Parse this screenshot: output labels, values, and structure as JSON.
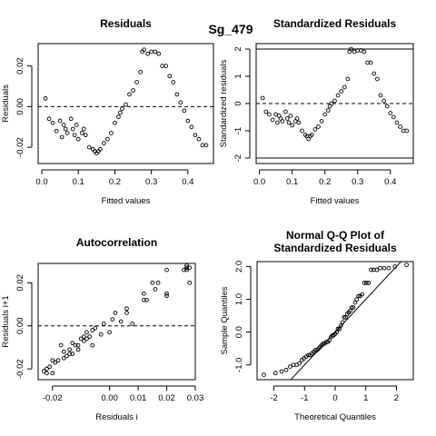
{
  "suptitle": "Sg_479",
  "chart_data": [
    {
      "id": "residuals",
      "type": "scatter",
      "title": "Residuals",
      "xlabel": "Fitted values",
      "ylabel": "Residuals",
      "xlim": [
        -0.01,
        0.47
      ],
      "ylim": [
        -0.028,
        0.031
      ],
      "xticks": [
        0.0,
        0.1,
        0.2,
        0.3,
        0.4
      ],
      "xtick_labels": [
        "0.0",
        "0.1",
        "0.2",
        "0.3",
        "0.4"
      ],
      "yticks": [
        -0.02,
        0.0,
        0.02
      ],
      "ytick_labels": [
        "-0.02",
        "0.00",
        "0.02"
      ],
      "hline": 0,
      "x": [
        0.01,
        0.02,
        0.03,
        0.04,
        0.05,
        0.055,
        0.06,
        0.065,
        0.07,
        0.08,
        0.085,
        0.09,
        0.095,
        0.1,
        0.11,
        0.115,
        0.12,
        0.13,
        0.14,
        0.145,
        0.15,
        0.155,
        0.16,
        0.17,
        0.18,
        0.19,
        0.2,
        0.21,
        0.215,
        0.22,
        0.23,
        0.24,
        0.25,
        0.26,
        0.27,
        0.275,
        0.28,
        0.29,
        0.3,
        0.31,
        0.32,
        0.33,
        0.34,
        0.35,
        0.36,
        0.37,
        0.38,
        0.39,
        0.4,
        0.41,
        0.42,
        0.43,
        0.44,
        0.45
      ],
      "y": [
        0.004,
        -0.006,
        -0.008,
        -0.012,
        -0.007,
        -0.015,
        -0.009,
        -0.011,
        -0.013,
        -0.006,
        -0.011,
        -0.014,
        -0.009,
        -0.016,
        -0.013,
        -0.011,
        -0.014,
        -0.02,
        -0.021,
        -0.022,
        -0.023,
        -0.022,
        -0.021,
        -0.018,
        -0.016,
        -0.013,
        -0.008,
        -0.005,
        -0.003,
        -0.001,
        0.001,
        0.006,
        0.008,
        0.012,
        0.017,
        0.027,
        0.028,
        0.026,
        0.027,
        0.027,
        0.026,
        0.02,
        0.02,
        0.015,
        0.012,
        0.006,
        0.002,
        -0.002,
        -0.007,
        -0.01,
        -0.014,
        -0.016,
        -0.019,
        -0.019
      ]
    },
    {
      "id": "standardized",
      "type": "scatter",
      "title": "Standardized Residuals",
      "xlabel": "Fitted values",
      "ylabel": "Standardized residuals",
      "xlim": [
        -0.01,
        0.47
      ],
      "ylim": [
        -2.2,
        2.2
      ],
      "xticks": [
        0.0,
        0.1,
        0.2,
        0.3,
        0.4
      ],
      "xtick_labels": [
        "0.0",
        "0.1",
        "0.2",
        "0.3",
        "0.4"
      ],
      "yticks": [
        -2,
        -1,
        0,
        1,
        2
      ],
      "ytick_labels": [
        "-2",
        "-1",
        "0",
        "1",
        "2"
      ],
      "hline": 0,
      "solid_hlines": [
        2,
        -2
      ],
      "x": [
        0.01,
        0.02,
        0.03,
        0.04,
        0.05,
        0.055,
        0.06,
        0.065,
        0.07,
        0.08,
        0.085,
        0.09,
        0.095,
        0.1,
        0.11,
        0.115,
        0.12,
        0.13,
        0.14,
        0.145,
        0.15,
        0.155,
        0.16,
        0.17,
        0.18,
        0.19,
        0.2,
        0.21,
        0.215,
        0.22,
        0.23,
        0.24,
        0.25,
        0.26,
        0.27,
        0.275,
        0.28,
        0.29,
        0.3,
        0.31,
        0.32,
        0.33,
        0.34,
        0.35,
        0.36,
        0.37,
        0.38,
        0.39,
        0.4,
        0.41,
        0.42,
        0.43,
        0.44,
        0.45
      ],
      "y": [
        0.2,
        -0.3,
        -0.4,
        -0.6,
        -0.4,
        -0.7,
        -0.45,
        -0.55,
        -0.65,
        -0.3,
        -0.55,
        -0.7,
        -0.45,
        -0.8,
        -0.65,
        -0.55,
        -0.7,
        -1.0,
        -1.15,
        -1.2,
        -1.3,
        -1.2,
        -1.15,
        -0.95,
        -0.85,
        -0.65,
        -0.4,
        -0.25,
        -0.1,
        0.0,
        0.1,
        0.3,
        0.45,
        0.6,
        0.9,
        1.9,
        2.0,
        1.9,
        1.95,
        1.95,
        1.9,
        1.5,
        1.5,
        1.1,
        0.9,
        0.3,
        0.1,
        -0.1,
        -0.35,
        -0.5,
        -0.7,
        -0.85,
        -1.0,
        -1.0
      ]
    },
    {
      "id": "autocorrelation",
      "type": "scatter",
      "title": "Autocorrelation",
      "xlabel": "Residuals i",
      "ylabel": "Residuals i+1",
      "xlim": [
        -0.025,
        0.03
      ],
      "ylim": [
        -0.025,
        0.029
      ],
      "xticks": [
        -0.02,
        0.0,
        0.01,
        0.02,
        0.03
      ],
      "xtick_labels": [
        "-0.02",
        "0.00",
        "0.01",
        "0.02",
        "0.03"
      ],
      "yticks": [
        -0.02,
        0.0,
        0.02
      ],
      "ytick_labels": [
        "-0.02",
        "0.00",
        "0.02"
      ],
      "hline": 0,
      "x": [
        -0.023,
        -0.022,
        -0.022,
        -0.021,
        -0.02,
        -0.02,
        -0.019,
        -0.018,
        -0.017,
        -0.016,
        -0.016,
        -0.015,
        -0.014,
        -0.014,
        -0.013,
        -0.013,
        -0.012,
        -0.011,
        -0.011,
        -0.01,
        -0.009,
        -0.009,
        -0.008,
        -0.008,
        -0.007,
        -0.006,
        -0.006,
        -0.005,
        -0.003,
        -0.002,
        0.0,
        0.001,
        0.002,
        0.004,
        0.006,
        0.006,
        0.008,
        0.012,
        0.012,
        0.013,
        0.015,
        0.016,
        0.017,
        0.02,
        0.02,
        0.02,
        0.026,
        0.027,
        0.027,
        0.027,
        0.028,
        0.028,
        0.027
      ],
      "y": [
        -0.021,
        -0.022,
        -0.02,
        -0.019,
        -0.022,
        -0.016,
        -0.017,
        -0.016,
        -0.009,
        -0.015,
        -0.012,
        -0.014,
        -0.013,
        -0.011,
        -0.008,
        -0.013,
        -0.009,
        -0.009,
        -0.011,
        -0.006,
        -0.007,
        -0.005,
        -0.006,
        -0.003,
        -0.005,
        -0.009,
        -0.002,
        -0.001,
        -0.004,
        0.001,
        -0.003,
        0.003,
        0.006,
        0.002,
        0.006,
        0.008,
        0.001,
        0.012,
        0.015,
        0.012,
        0.02,
        0.017,
        0.02,
        0.015,
        0.026,
        0.014,
        0.026,
        0.027,
        0.026,
        0.028,
        0.027,
        0.02,
        0.027
      ]
    },
    {
      "id": "qqplot",
      "type": "scatter",
      "title": "Normal Q-Q Plot of",
      "title2": "Standardized Residuals",
      "xlabel": "Theoretical Quantiles",
      "ylabel": "Sample Quantiles",
      "xlim": [
        -2.55,
        2.55
      ],
      "ylim": [
        -1.45,
        2.15
      ],
      "xticks": [
        -2,
        -1,
        0,
        1,
        2
      ],
      "xtick_labels": [
        "-2",
        "-1",
        "0",
        "1",
        "2"
      ],
      "yticks": [
        -1.0,
        0.0,
        1.0,
        2.0
      ],
      "ytick_labels": [
        "-1.0",
        "0.0",
        "1.0",
        "2.0"
      ],
      "refline": {
        "intercept": 0.0,
        "slope": 1.0
      },
      "x": [
        -2.33,
        -1.95,
        -1.75,
        -1.6,
        -1.47,
        -1.36,
        -1.26,
        -1.17,
        -1.09,
        -1.02,
        -0.95,
        -0.88,
        -0.82,
        -0.76,
        -0.7,
        -0.65,
        -0.59,
        -0.54,
        -0.49,
        -0.44,
        -0.39,
        -0.34,
        -0.29,
        -0.24,
        -0.19,
        -0.14,
        -0.09,
        -0.05,
        0.0,
        0.05,
        0.09,
        0.14,
        0.19,
        0.24,
        0.29,
        0.34,
        0.39,
        0.44,
        0.49,
        0.54,
        0.59,
        0.65,
        0.7,
        0.76,
        0.82,
        0.88,
        0.95,
        1.02,
        1.09,
        1.17,
        1.26,
        1.36,
        1.47,
        1.6,
        1.75,
        1.95,
        2.33
      ],
      "y": [
        -1.3,
        -1.25,
        -1.2,
        -1.15,
        -1.05,
        -1.0,
        -1.0,
        -0.95,
        -0.85,
        -0.8,
        -0.75,
        -0.7,
        -0.7,
        -0.65,
        -0.6,
        -0.55,
        -0.55,
        -0.5,
        -0.45,
        -0.4,
        -0.35,
        -0.35,
        -0.3,
        -0.3,
        -0.25,
        -0.15,
        -0.1,
        -0.1,
        -0.05,
        0.0,
        0.1,
        0.1,
        0.2,
        0.3,
        0.45,
        0.45,
        0.55,
        0.6,
        0.65,
        0.75,
        0.75,
        0.9,
        1.0,
        1.1,
        1.1,
        1.15,
        1.5,
        1.5,
        1.5,
        1.9,
        1.9,
        1.9,
        1.95,
        1.95,
        1.95,
        2.0,
        2.05
      ]
    }
  ]
}
